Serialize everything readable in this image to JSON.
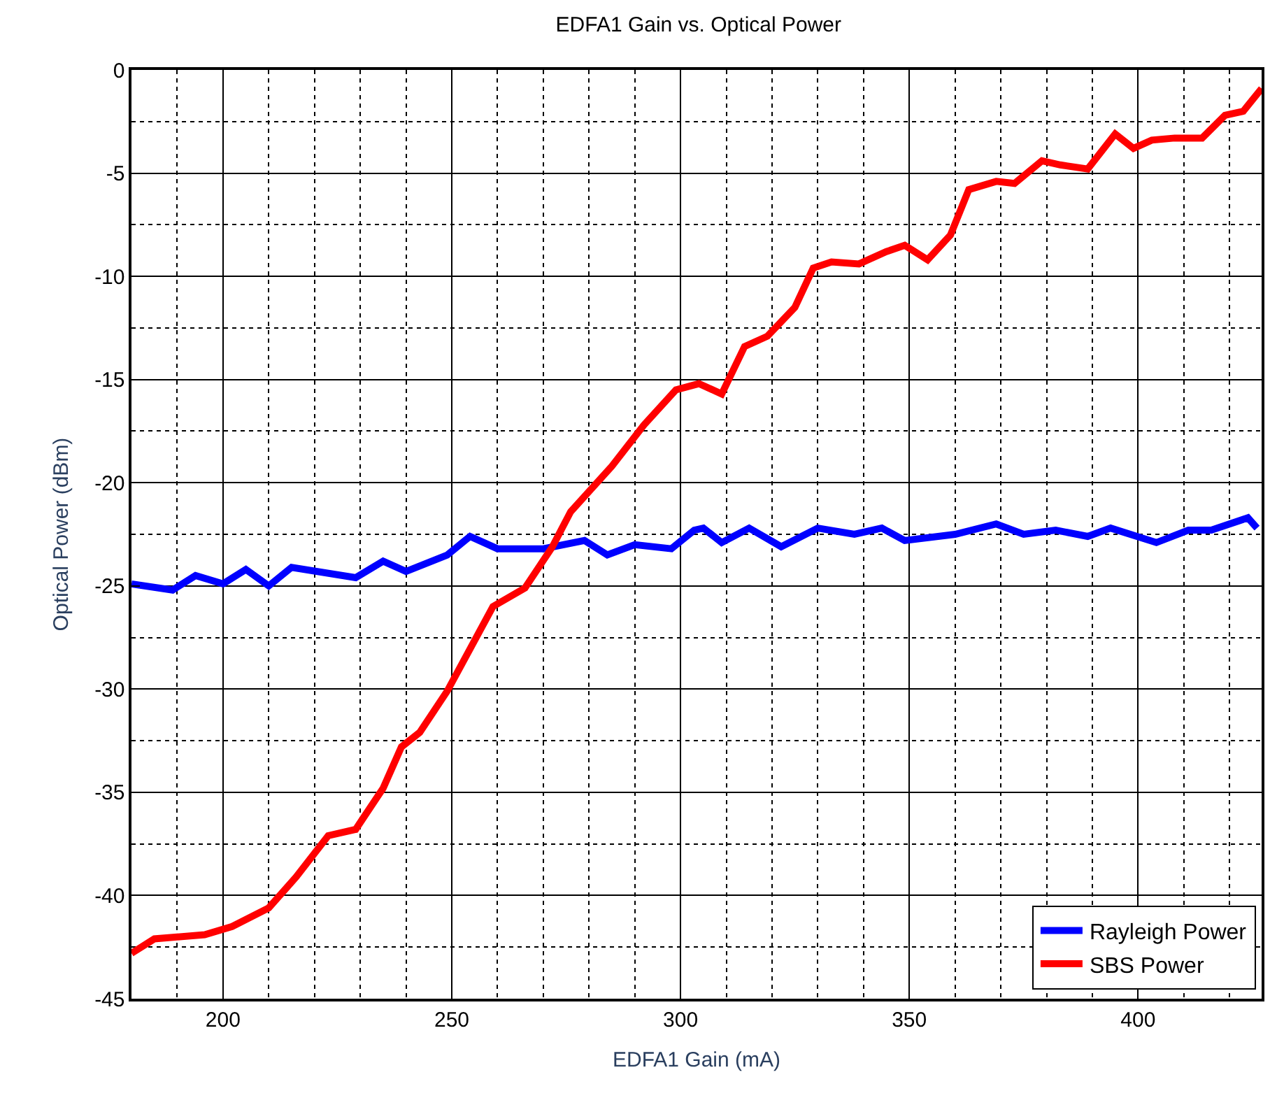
{
  "chart_data": {
    "type": "line",
    "title": "EDFA1 Gain vs. Optical Power",
    "xlabel": "EDFA1 Gain (mA)",
    "ylabel": "Optical Power (dBm)",
    "xlim": [
      180,
      427
    ],
    "xticks": [
      200,
      250,
      300,
      350,
      400
    ],
    "ylim": [
      -45,
      0
    ],
    "yticks": [
      -45,
      -40,
      -35,
      -30,
      -25,
      -20,
      -15,
      -10,
      -5,
      0
    ],
    "grid": true,
    "legend": "bottom right",
    "line_style": "solid",
    "marker": "none",
    "series": [
      {
        "name": "Rayleigh Power",
        "color": "#0000ff",
        "x": [
          180,
          189,
          194,
          200,
          205,
          210,
          215,
          229,
          235,
          240,
          249,
          254,
          260,
          270,
          279,
          284,
          290,
          298,
          303,
          305,
          309,
          315,
          322,
          330,
          338,
          344,
          349,
          360,
          369,
          375,
          382,
          389,
          394,
          404,
          411,
          416,
          424,
          426
        ],
        "values": [
          -24.9,
          -25.2,
          -24.5,
          -24.9,
          -24.2,
          -25.0,
          -24.1,
          -24.6,
          -23.8,
          -24.3,
          -23.5,
          -22.6,
          -23.2,
          -23.2,
          -22.8,
          -23.5,
          -23.0,
          -23.2,
          -22.3,
          -22.2,
          -22.9,
          -22.2,
          -23.1,
          -22.2,
          -22.5,
          -22.2,
          -22.8,
          -22.5,
          -22.0,
          -22.5,
          -22.3,
          -22.6,
          -22.2,
          -22.9,
          -22.3,
          -22.3,
          -21.7,
          -22.2
        ]
      },
      {
        "name": "SBS Power",
        "color": "#ff0000",
        "x": [
          180,
          185,
          196,
          202,
          210,
          216,
          223,
          229,
          235,
          239,
          243,
          249,
          259,
          266,
          272,
          276,
          285,
          292,
          299,
          304,
          309,
          314,
          319,
          325,
          329,
          333,
          339,
          345,
          349,
          354,
          359,
          363,
          369,
          373,
          379,
          383,
          389,
          395,
          399,
          403,
          408,
          414,
          419,
          423,
          427
        ],
        "values": [
          -42.8,
          -42.1,
          -41.9,
          -41.5,
          -40.6,
          -39.1,
          -37.1,
          -36.8,
          -34.8,
          -32.8,
          -32.1,
          -30.1,
          -26.0,
          -25.1,
          -23.1,
          -21.4,
          -19.2,
          -17.2,
          -15.5,
          -15.2,
          -15.7,
          -13.4,
          -12.9,
          -11.5,
          -9.6,
          -9.3,
          -9.4,
          -8.8,
          -8.5,
          -9.2,
          -8.0,
          -5.8,
          -5.4,
          -5.5,
          -4.4,
          -4.6,
          -4.8,
          -3.1,
          -3.8,
          -3.4,
          -3.3,
          -3.3,
          -2.2,
          -2.0,
          -0.9
        ]
      }
    ]
  }
}
